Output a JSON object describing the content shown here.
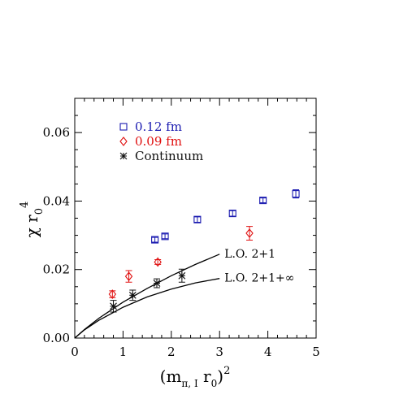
{
  "chart_data": {
    "type": "scatter",
    "title": "",
    "xlabel": "",
    "ylabel": "",
    "xlim": [
      0,
      5
    ],
    "ylim": [
      0,
      0.07
    ],
    "xticks": [
      "0",
      "1",
      "2",
      "3",
      "4",
      "5"
    ],
    "yticks": [
      "0.00",
      "0.02",
      "0.04",
      "0.06"
    ],
    "grid": false,
    "legend_position": "top-left",
    "series": [
      {
        "name": "0.12 fm",
        "marker": "square",
        "color": "#1a1ab0",
        "points": [
          {
            "x": 1.66,
            "y": 0.0287,
            "err": 0.0007
          },
          {
            "x": 1.87,
            "y": 0.0297,
            "err": 0.0007
          },
          {
            "x": 2.54,
            "y": 0.0346,
            "err": 0.0008
          },
          {
            "x": 3.27,
            "y": 0.0364,
            "err": 0.0008
          },
          {
            "x": 3.9,
            "y": 0.0402,
            "err": 0.0007
          },
          {
            "x": 4.58,
            "y": 0.0421,
            "err": 0.0012
          }
        ]
      },
      {
        "name": "0.09 fm",
        "marker": "diamond",
        "color": "#e01010",
        "points": [
          {
            "x": 0.78,
            "y": 0.0128,
            "err": 0.001
          },
          {
            "x": 1.12,
            "y": 0.018,
            "err": 0.0017
          },
          {
            "x": 1.72,
            "y": 0.0222,
            "err": 0.0007
          },
          {
            "x": 3.62,
            "y": 0.0306,
            "err": 0.002
          }
        ]
      },
      {
        "name": "Continuum",
        "marker": "asterisk",
        "color": "#111111",
        "points": [
          {
            "x": 0.8,
            "y": 0.0093,
            "err": 0.0017
          },
          {
            "x": 1.2,
            "y": 0.0125,
            "err": 0.0015
          },
          {
            "x": 1.7,
            "y": 0.016,
            "err": 0.0013
          },
          {
            "x": 2.22,
            "y": 0.0182,
            "err": 0.0019
          }
        ]
      }
    ],
    "curves": [
      {
        "label": "L.O. 2+1",
        "points": [
          [
            0,
            0
          ],
          [
            0.2,
            0.0025
          ],
          [
            0.5,
            0.0058
          ],
          [
            1.0,
            0.0105
          ],
          [
            1.5,
            0.0145
          ],
          [
            2.0,
            0.0182
          ],
          [
            2.5,
            0.0215
          ],
          [
            3.0,
            0.0245
          ]
        ]
      },
      {
        "label": "L.O. 2+1+∞",
        "points": [
          [
            0,
            0
          ],
          [
            0.2,
            0.0024
          ],
          [
            0.5,
            0.0052
          ],
          [
            1.0,
            0.009
          ],
          [
            1.5,
            0.012
          ],
          [
            2.0,
            0.0143
          ],
          [
            2.5,
            0.0161
          ],
          [
            3.0,
            0.0174
          ]
        ]
      }
    ]
  }
}
